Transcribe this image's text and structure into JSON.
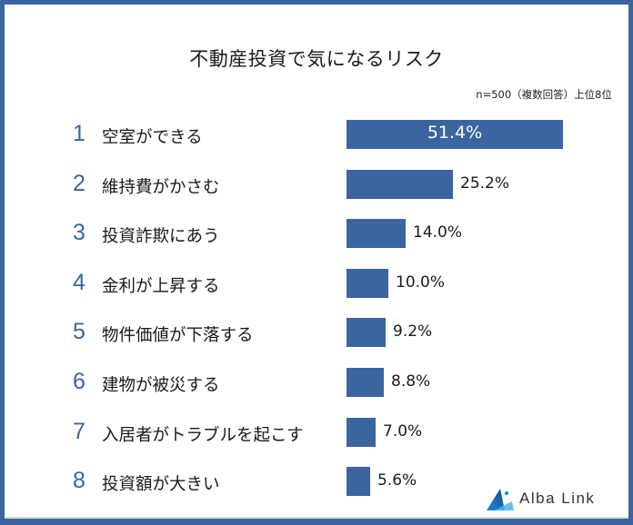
{
  "header": {
    "title": "不動産投資で気になるリスク",
    "note": "n=500（複数回答）上位8位"
  },
  "colors": {
    "accent": "#3a65a0",
    "frame": "#3a65a0",
    "text": "#1a1a1a"
  },
  "items": [
    {
      "rank": "1",
      "label": "空室ができる",
      "value": "51.4%"
    },
    {
      "rank": "2",
      "label": "維持費がかさむ",
      "value": "25.2%"
    },
    {
      "rank": "3",
      "label": "投資詐欺にあう",
      "value": "14.0%"
    },
    {
      "rank": "4",
      "label": "金利が上昇する",
      "value": "10.0%"
    },
    {
      "rank": "5",
      "label": "物件価値が下落する",
      "value": "9.2%"
    },
    {
      "rank": "6",
      "label": "建物が被災する",
      "value": "8.8%"
    },
    {
      "rank": "7",
      "label": "入居者がトラブルを起こす",
      "value": "7.0%"
    },
    {
      "rank": "8",
      "label": "投資額が大きい",
      "value": "5.6%"
    }
  ],
  "logo": {
    "text": "Alba Link",
    "icon": "mountain-triangle-logo-icon"
  },
  "chart_data": {
    "type": "bar",
    "orientation": "horizontal",
    "title": "不動産投資で気になるリスク",
    "subtitle": "n=500（複数回答）上位8位",
    "categories": [
      "空室ができる",
      "維持費がかさむ",
      "投資詐欺にあう",
      "金利が上昇する",
      "物件価値が下落する",
      "建物が被災する",
      "入居者がトラブルを起こす",
      "投資額が大きい"
    ],
    "values": [
      51.4,
      25.2,
      14.0,
      10.0,
      9.2,
      8.8,
      7.0,
      5.6
    ],
    "unit": "%",
    "xlabel": "",
    "ylabel": "",
    "grid": false,
    "legend": null,
    "data_labels": true
  }
}
